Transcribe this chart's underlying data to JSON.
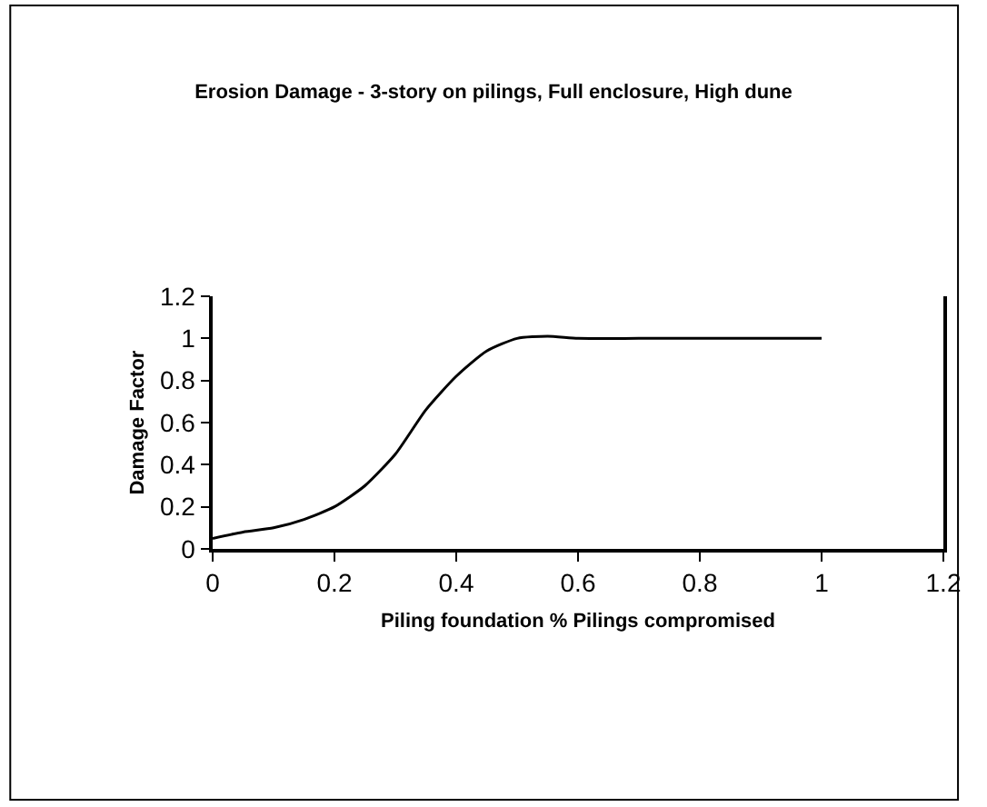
{
  "chart_data": {
    "type": "line",
    "title": "Erosion Damage - 3-story on pilings, Full enclosure, High dune",
    "xlabel": "Piling foundation % Pilings compromised",
    "ylabel": "Damage Factor",
    "x": [
      0,
      0.05,
      0.1,
      0.15,
      0.2,
      0.25,
      0.3,
      0.35,
      0.4,
      0.45,
      0.5,
      0.55,
      0.6,
      0.7,
      0.8,
      0.9,
      1
    ],
    "series": [
      {
        "color": "#000000",
        "values": [
          0.05,
          0.08,
          0.1,
          0.14,
          0.2,
          0.3,
          0.45,
          0.66,
          0.82,
          0.94,
          1.0,
          1.01,
          1.0,
          1.0,
          1.0,
          1.0,
          1.0
        ]
      }
    ],
    "xlim": [
      0,
      1.2
    ],
    "xticks": [
      0,
      0.2,
      0.4,
      0.6,
      0.8,
      1,
      1.2
    ],
    "ylim": [
      0,
      1.2
    ],
    "yticks": [
      0,
      0.2,
      0.4,
      0.6,
      0.8,
      1,
      1.2
    ],
    "legend": false,
    "marker": "none",
    "line_style": "solid"
  }
}
